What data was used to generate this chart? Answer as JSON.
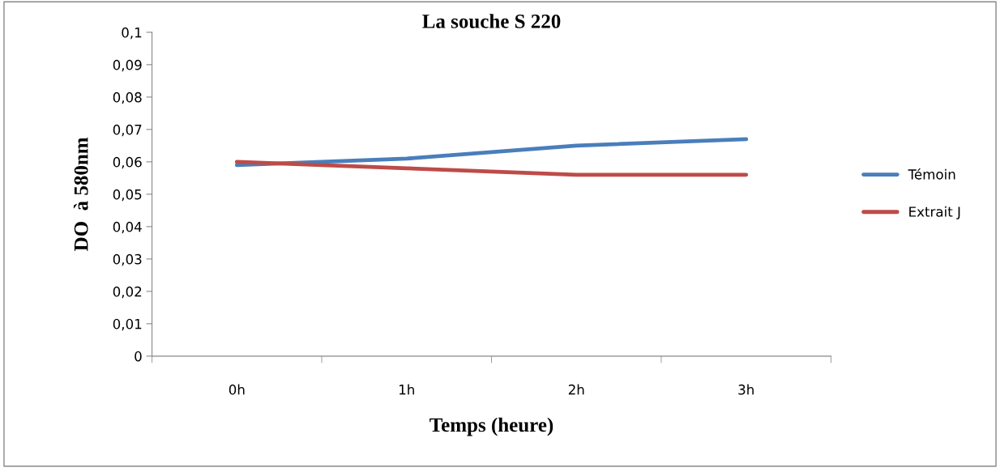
{
  "chart_data": {
    "type": "line",
    "title": "La souche S 220",
    "xlabel": "Temps (heure)",
    "ylabel": "DO  à 580nm",
    "categories": [
      "0h",
      "1h",
      "2h",
      "3h"
    ],
    "series": [
      {
        "name": "Témoin",
        "color": "#4a7ebb",
        "values": [
          0.059,
          0.061,
          0.065,
          0.067
        ]
      },
      {
        "name": "Extrait J",
        "color": "#be4b48",
        "values": [
          0.06,
          0.058,
          0.056,
          0.056
        ]
      }
    ],
    "ylim": [
      0,
      0.1
    ],
    "yticks": [
      0,
      {
        "value": 0.01,
        "label": "0,01"
      },
      {
        "value": 0.02,
        "label": "0,02"
      },
      {
        "value": 0.03,
        "label": "0,03"
      },
      {
        "value": 0.04,
        "label": "0,04"
      },
      {
        "value": 0.05,
        "label": "0,05"
      },
      {
        "value": 0.06,
        "label": "0,06"
      },
      {
        "value": 0.07,
        "label": "0,07"
      },
      {
        "value": 0.08,
        "label": "0,08"
      },
      {
        "value": 0.09,
        "label": "0,09"
      },
      {
        "value": 0.1,
        "label": "0,1"
      }
    ],
    "grid": false,
    "legend": "right",
    "marker": "none",
    "line_style": "solid"
  }
}
